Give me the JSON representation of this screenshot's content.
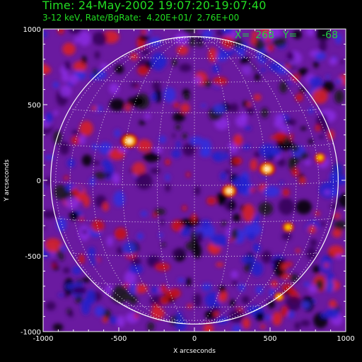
{
  "header": {
    "time": "Time: 24-May-2002 19:07:20-19:07:40",
    "rate": "3-12 keV, Rate/BgRate:  4.20E+01/  2.76E+00"
  },
  "readout": {
    "x_label": "X=",
    "x_value": "268",
    "y_label": "Y=",
    "y_value": "-68"
  },
  "colors": {
    "background": "#6a1aa0",
    "text": "#22dd22",
    "axes": "#ffffff",
    "limb": "#ffffff"
  },
  "chart_data": {
    "type": "heatmap",
    "title": "",
    "xlabel": "X arcseconds",
    "ylabel": "Y arcseconds",
    "xlim": [
      -1000,
      1000
    ],
    "ylim": [
      -1000,
      1000
    ],
    "xticks": [
      -1000,
      -500,
      0,
      500,
      1000
    ],
    "yticks": [
      -1000,
      -500,
      0,
      500,
      1000
    ],
    "solar_radius_arcsec": 950,
    "grid": "heliographic lat/lon dotted grid",
    "sources": [
      {
        "x": -430,
        "y": 260,
        "intensity": 1.0
      },
      {
        "x": 480,
        "y": 75,
        "intensity": 0.95
      },
      {
        "x": 230,
        "y": -70,
        "intensity": 0.85
      },
      {
        "x": 620,
        "y": -310,
        "intensity": 0.55
      },
      {
        "x": 830,
        "y": 150,
        "intensity": 0.5
      },
      {
        "x": 560,
        "y": -770,
        "intensity": 0.45
      }
    ],
    "colormap": [
      "black",
      "blue",
      "purple",
      "red",
      "yellow",
      "white"
    ]
  }
}
